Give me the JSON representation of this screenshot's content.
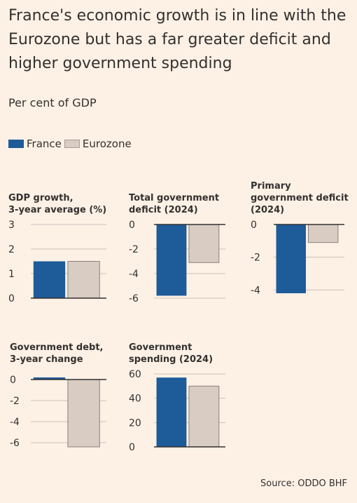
{
  "title": "France's economic growth is in line with the Eurozone but has a far greater deficit and higher government spending",
  "subtitle": "Per cent of GDP",
  "legend": {
    "france": "France",
    "eurozone": "Eurozone"
  },
  "colors": {
    "france": "#1d5b99",
    "eurozone": "#d8ccc3",
    "eurozone_border": "#8a817b",
    "grid": "#cbc1b8",
    "background": "#fdf1e6"
  },
  "source": "Source: ODDO BHF",
  "chart_data": [
    {
      "type": "bar",
      "title_lines": [
        "GDP growth,",
        "3-year average (%)"
      ],
      "categories": [
        "France",
        "Eurozone"
      ],
      "values": [
        1.5,
        1.5
      ],
      "ylim": [
        0,
        3
      ],
      "ticks": [
        3,
        2,
        1,
        0
      ]
    },
    {
      "type": "bar",
      "title_lines": [
        "Total government",
        "deficit (2024)"
      ],
      "categories": [
        "France",
        "Eurozone"
      ],
      "values": [
        -5.8,
        -3.1
      ],
      "ylim": [
        -6,
        0
      ],
      "ticks": [
        0,
        -2,
        -4,
        -6
      ]
    },
    {
      "type": "bar",
      "title_lines": [
        "Primary",
        "government deficit",
        "(2024)"
      ],
      "categories": [
        "France",
        "Eurozone"
      ],
      "values": [
        -4.2,
        -1.1
      ],
      "ylim": [
        -4.5,
        0
      ],
      "ticks": [
        0,
        -2,
        -4
      ]
    },
    {
      "type": "bar",
      "title_lines": [
        "Government debt,",
        "3-year change"
      ],
      "categories": [
        "France",
        "Eurozone"
      ],
      "values": [
        0.2,
        -6.4
      ],
      "ylim": [
        -6.4,
        0.2
      ],
      "ticks": [
        0,
        -2,
        -4,
        -6
      ]
    },
    {
      "type": "bar",
      "title_lines": [
        "Government",
        "spending (2024)"
      ],
      "categories": [
        "France",
        "Eurozone"
      ],
      "values": [
        57,
        50
      ],
      "ylim": [
        0,
        60
      ],
      "ticks": [
        60,
        40,
        20,
        0
      ]
    }
  ]
}
